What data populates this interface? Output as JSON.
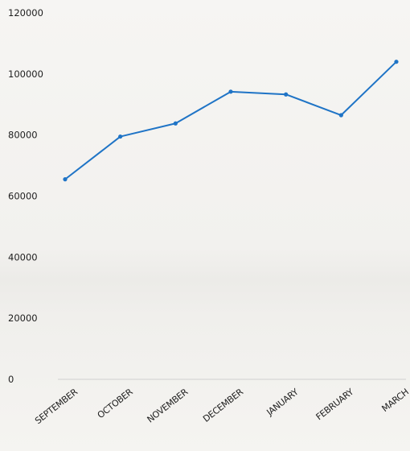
{
  "chart_data": {
    "type": "line",
    "title": "",
    "xlabel": "",
    "ylabel": "",
    "categories": [
      "SEPTEMBER",
      "OCTOBER",
      "NOVEMBER",
      "DECEMBER",
      "JANUARY",
      "FEBRUARY",
      "MARCH"
    ],
    "series": [
      {
        "values": [
          65500,
          79500,
          83800,
          94200,
          93300,
          86500,
          104000
        ]
      }
    ],
    "ylim": [
      0,
      120000
    ],
    "yticks": [
      "0",
      "20000",
      "40000",
      "60000",
      "80000",
      "100000",
      "120000"
    ],
    "grid": false,
    "line_color": "#1f74c6"
  }
}
